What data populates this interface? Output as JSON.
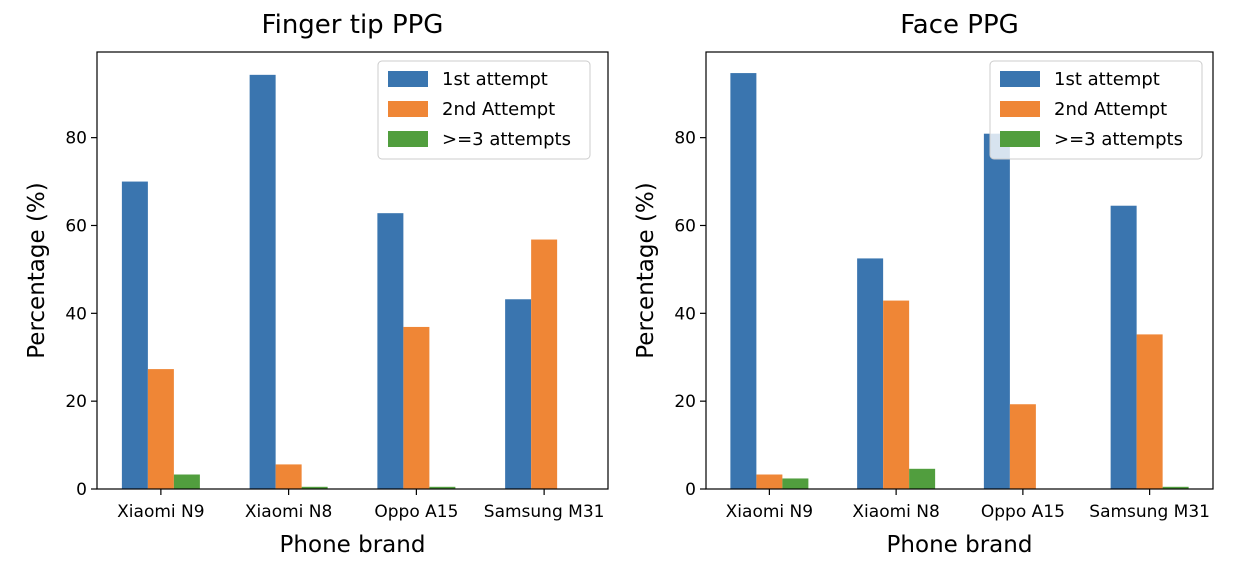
{
  "chart_data": [
    {
      "type": "bar",
      "title": "Finger tip PPG",
      "xlabel": "Phone brand",
      "ylabel": "Percentage (%)",
      "categories": [
        "Xiaomi N9",
        "Xiaomi N8",
        "Oppo A15",
        "Samsung M31"
      ],
      "series": [
        {
          "name": "1st attempt",
          "color": "#3a75af",
          "values": [
            70.0,
            94.3,
            62.8,
            43.2
          ]
        },
        {
          "name": "2nd Attempt",
          "color": "#ef8636",
          "values": [
            27.3,
            5.6,
            36.9,
            56.8
          ]
        },
        {
          "name": ">=3 attempts",
          "color": "#519e3e",
          "values": [
            3.3,
            0.5,
            0.5,
            0.0
          ]
        }
      ],
      "yticks": [
        0,
        20,
        40,
        60,
        80
      ],
      "ylim": [
        0,
        99.5
      ],
      "legend": "top-right",
      "grid": false
    },
    {
      "type": "bar",
      "title": "Face PPG",
      "xlabel": "Phone brand",
      "ylabel": "Percentage (%)",
      "categories": [
        "Xiaomi N9",
        "Xiaomi N8",
        "Oppo A15",
        "Samsung M31"
      ],
      "series": [
        {
          "name": "1st attempt",
          "color": "#3a75af",
          "values": [
            94.7,
            52.5,
            80.9,
            64.5
          ]
        },
        {
          "name": "2nd Attempt",
          "color": "#ef8636",
          "values": [
            3.3,
            42.9,
            19.3,
            35.2
          ]
        },
        {
          "name": ">=3 attempts",
          "color": "#519e3e",
          "values": [
            2.4,
            4.6,
            0.0,
            0.5
          ]
        }
      ],
      "yticks": [
        0,
        20,
        40,
        60,
        80
      ],
      "ylim": [
        0,
        99.5
      ],
      "legend": "top-right",
      "grid": false
    }
  ]
}
